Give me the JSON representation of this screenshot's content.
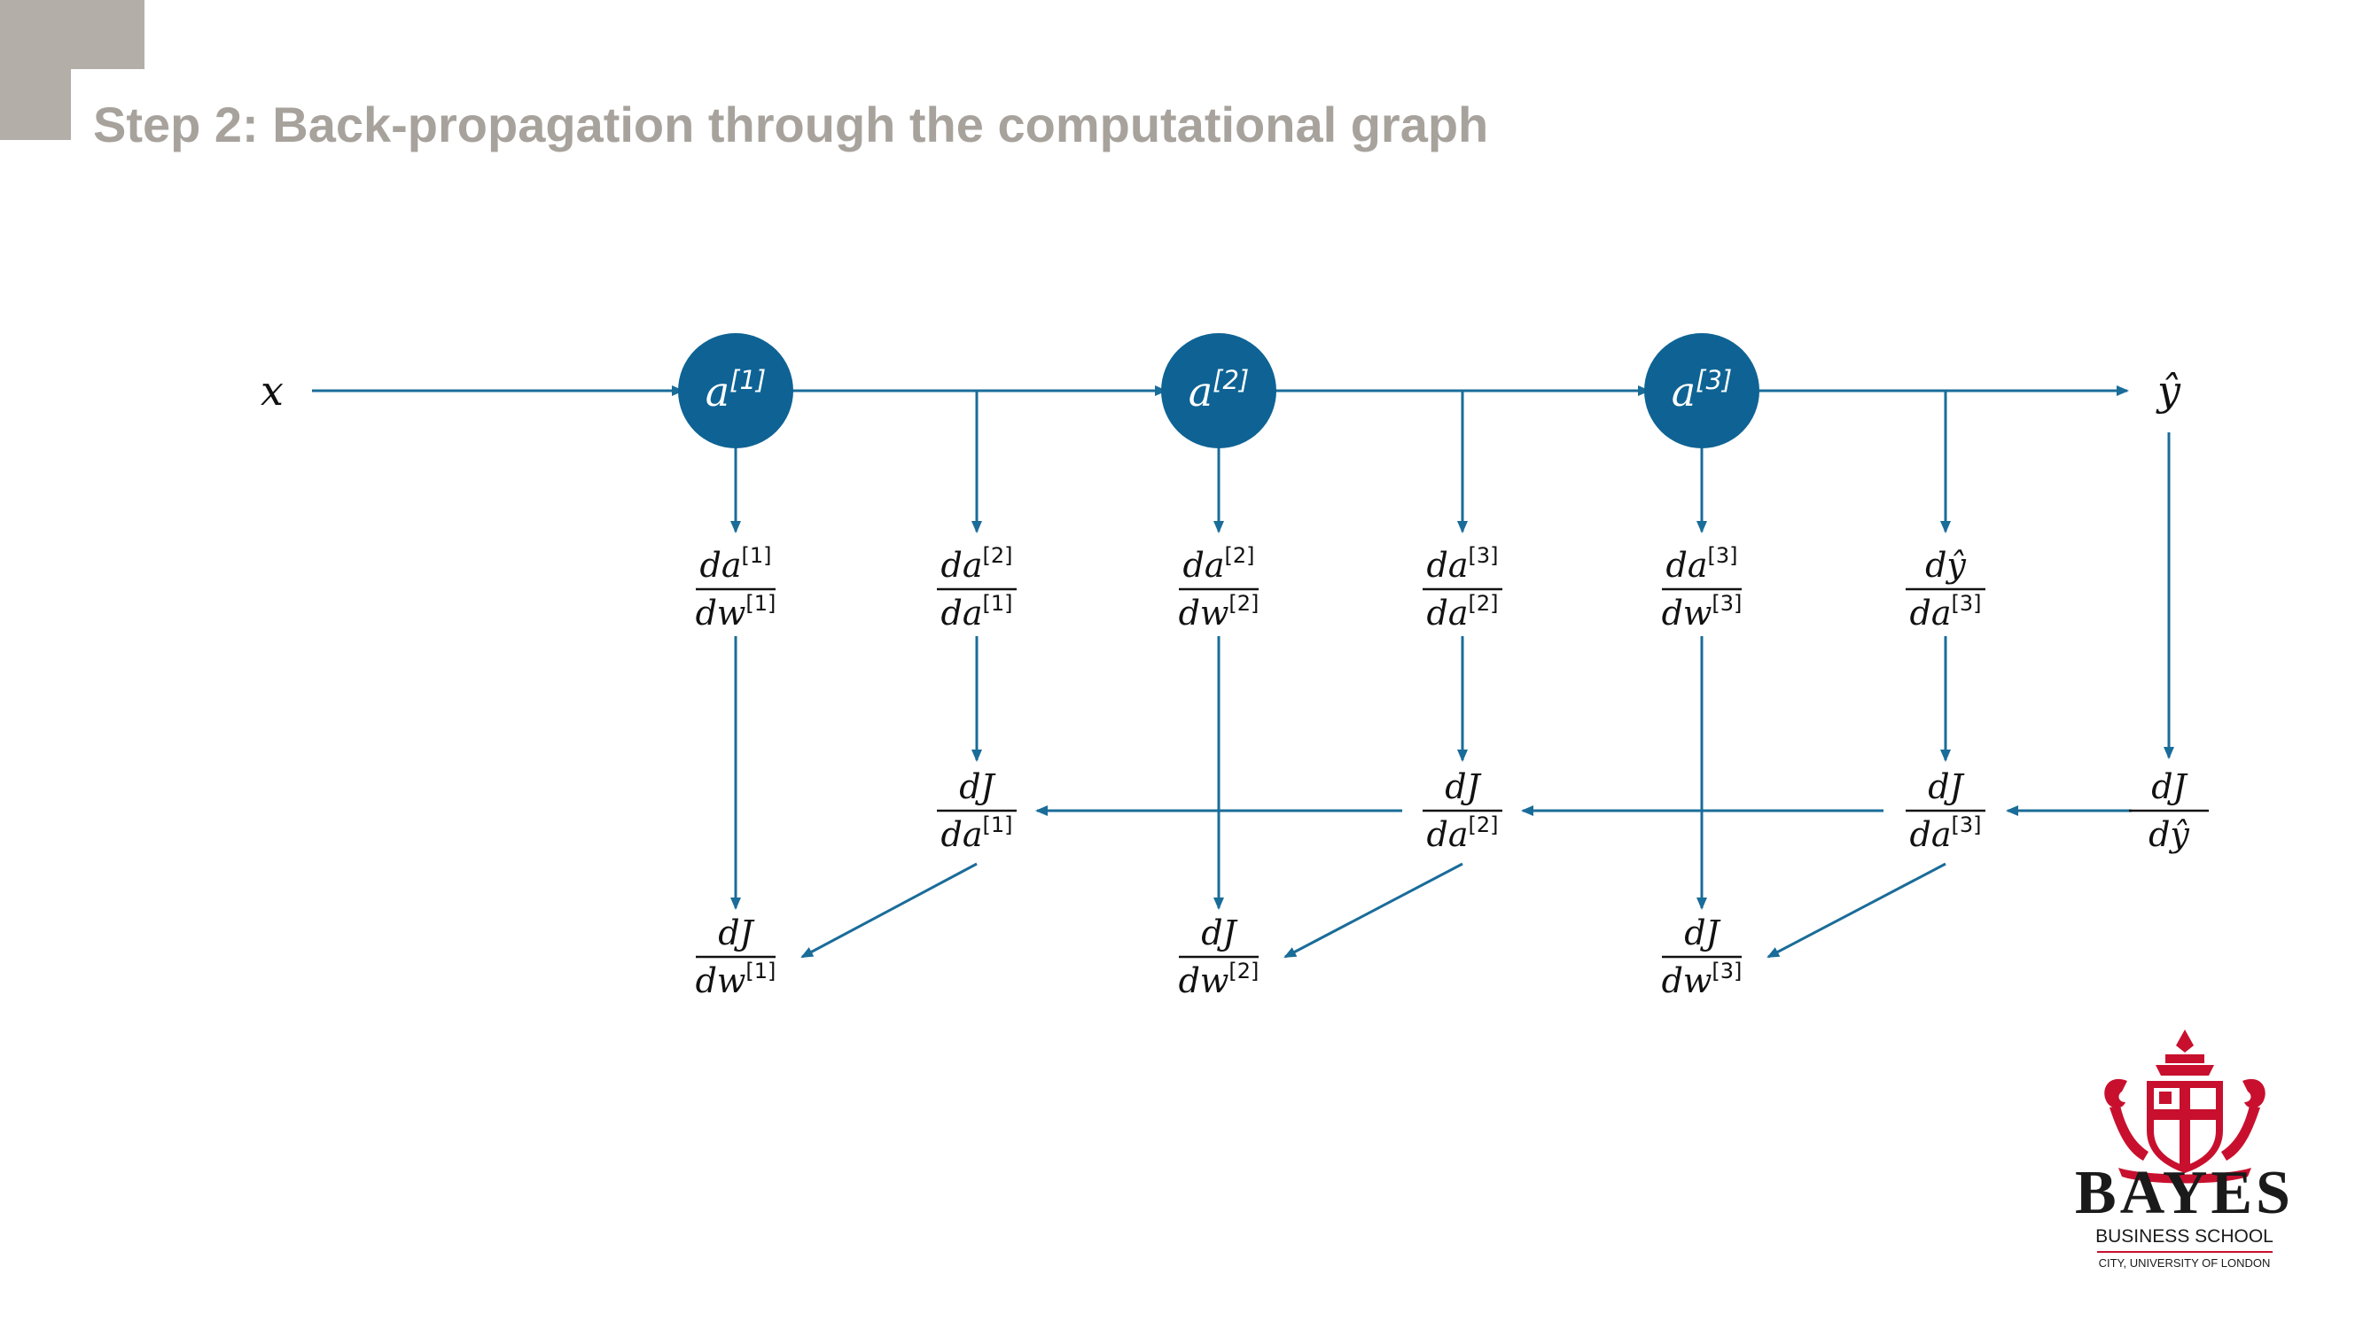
{
  "slide": {
    "title": "Step 2: Back-propagation through the computational graph"
  },
  "colors": {
    "accent": "#0e6394",
    "arrow": "#1a6c99",
    "title": "#a7a29c",
    "corner": "#b3aea8",
    "logo_red": "#c8102e"
  },
  "graph": {
    "input": "x",
    "output": "ŷ",
    "nodes": [
      {
        "base": "a",
        "sup": "[1]"
      },
      {
        "base": "a",
        "sup": "[2]"
      },
      {
        "base": "a",
        "sup": "[3]"
      }
    ],
    "local_derivatives": [
      {
        "num": "da",
        "num_sup": "[1]",
        "den": "dw",
        "den_sup": "[1]"
      },
      {
        "num": "da",
        "num_sup": "[2]",
        "den": "da",
        "den_sup": "[1]"
      },
      {
        "num": "da",
        "num_sup": "[2]",
        "den": "dw",
        "den_sup": "[2]"
      },
      {
        "num": "da",
        "num_sup": "[3]",
        "den": "da",
        "den_sup": "[2]"
      },
      {
        "num": "da",
        "num_sup": "[3]",
        "den": "dw",
        "den_sup": "[3]"
      },
      {
        "num": "dŷ",
        "num_sup": "",
        "den": "da",
        "den_sup": "[3]"
      }
    ],
    "cost_activations": [
      {
        "num": "dJ",
        "num_sup": "",
        "den": "da",
        "den_sup": "[1]"
      },
      {
        "num": "dJ",
        "num_sup": "",
        "den": "da",
        "den_sup": "[2]"
      },
      {
        "num": "dJ",
        "num_sup": "",
        "den": "da",
        "den_sup": "[3]"
      },
      {
        "num": "dJ",
        "num_sup": "",
        "den": "dŷ",
        "den_sup": ""
      }
    ],
    "cost_weights": [
      {
        "num": "dJ",
        "num_sup": "",
        "den": "dw",
        "den_sup": "[1]"
      },
      {
        "num": "dJ",
        "num_sup": "",
        "den": "dw",
        "den_sup": "[2]"
      },
      {
        "num": "dJ",
        "num_sup": "",
        "den": "dw",
        "den_sup": "[3]"
      }
    ]
  },
  "logo": {
    "name": "BAYES",
    "subtitle": "BUSINESS SCHOOL",
    "affiliation": "CITY, UNIVERSITY OF LONDON"
  }
}
